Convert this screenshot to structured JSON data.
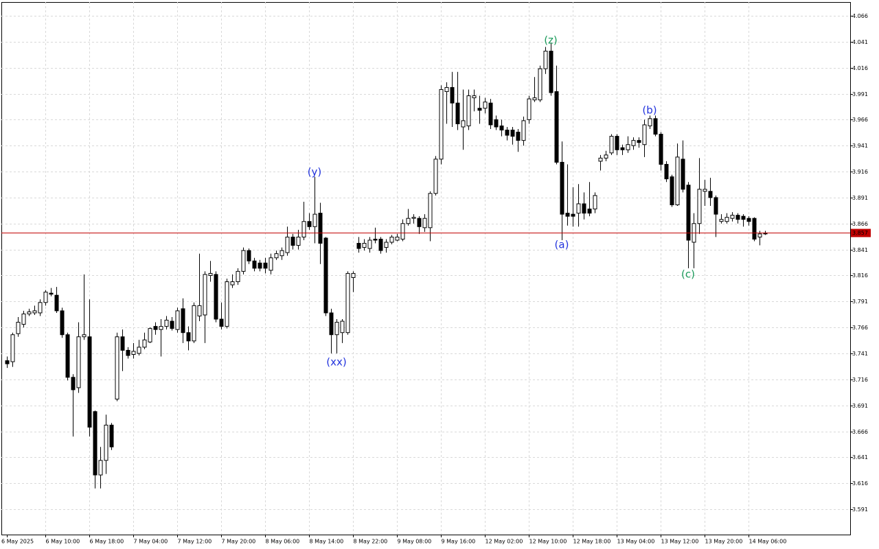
{
  "chart_data": {
    "type": "candlestick",
    "categories": [
      "6 May 2025",
      null,
      null,
      null,
      null,
      null,
      null,
      "6 May 10:00",
      null,
      null,
      null,
      null,
      null,
      null,
      null,
      "6 May 18:00",
      null,
      null,
      null,
      null,
      null,
      null,
      null,
      "7 May 04:00",
      null,
      null,
      null,
      null,
      null,
      null,
      null,
      "7 May 12:00",
      null,
      null,
      null,
      null,
      null,
      null,
      null,
      "7 May 20:00",
      null,
      null,
      null,
      null,
      null,
      null,
      null,
      "8 May 06:00",
      null,
      null,
      null,
      null,
      null,
      null,
      null,
      "8 May 14:00",
      null,
      null,
      null,
      null,
      null,
      null,
      null,
      "8 May 22:00",
      null,
      null,
      null,
      null,
      null,
      null,
      null,
      "9 May 08:00",
      null,
      null,
      null,
      null,
      null,
      null,
      null,
      "9 May 16:00",
      null,
      null,
      null,
      null,
      null,
      null,
      null,
      "12 May 02:00",
      null,
      null,
      null,
      null,
      null,
      null,
      null,
      "12 May 10:00",
      null,
      null,
      null,
      null,
      null,
      null,
      null,
      "12 May 18:00",
      null,
      null,
      null,
      null,
      null,
      null,
      null,
      "13 May 04:00",
      null,
      null,
      null,
      null,
      null,
      null,
      null,
      "13 May 12:00",
      null,
      null,
      null,
      null,
      null,
      null,
      null,
      "13 May 20:00",
      null,
      null,
      null,
      null,
      null,
      null,
      null,
      "14 May 06:00",
      null,
      null,
      null
    ],
    "open": [
      3.734,
      3.733,
      3.76,
      3.769,
      3.779,
      3.78,
      3.78,
      3.79,
      3.799,
      3.797,
      3.782,
      3.759,
      3.718,
      3.708,
      3.757,
      3.757,
      3.685,
      3.624,
      3.638,
      3.672,
      3.697,
      3.757,
      3.744,
      3.74,
      3.741,
      3.747,
      3.752,
      3.767,
      3.764,
      3.767,
      3.772,
      3.764,
      3.784,
      3.761,
      3.753,
      3.777,
      3.778,
      3.816,
      3.817,
      3.774,
      3.767,
      3.807,
      3.81,
      3.82,
      3.84,
      3.83,
      3.828,
      3.828,
      3.821,
      3.833,
      3.835,
      3.838,
      3.853,
      3.845,
      3.853,
      3.868,
      3.863,
      3.876,
      3.852,
      3.78,
      3.759,
      3.761,
      3.761,
      3.814,
      3.847,
      3.843,
      3.842,
      3.851,
      3.851,
      3.843,
      3.848,
      3.85,
      3.851,
      3.866,
      3.871,
      3.871,
      3.862,
      3.862,
      3.895,
      3.928,
      3.993,
      3.997,
      3.982,
      3.959,
      3.96,
      3.987,
      3.977,
      3.977,
      3.982,
      3.966,
      3.96,
      3.956,
      3.956,
      3.954,
      3.946,
      3.966,
      3.985,
      3.985,
      4.015,
      4.032,
      3.993,
      3.925,
      3.876,
      3.875,
      3.876,
      3.885,
      3.88,
      3.88,
      3.926,
      3.929,
      3.934,
      3.95,
      3.939,
      3.937,
      3.941,
      3.946,
      3.942,
      3.96,
      3.967,
      3.952,
      3.923,
      3.911,
      3.884,
      3.928,
      3.903,
      3.848,
      3.866,
      3.897,
      3.897,
      3.891,
      3.868,
      3.868,
      3.871,
      3.874,
      3.873,
      3.871,
      3.871,
      3.853,
      3.857
    ],
    "high": [
      3.738,
      3.761,
      3.776,
      3.782,
      3.784,
      3.787,
      3.793,
      3.802,
      3.804,
      3.805,
      3.785,
      3.761,
      3.721,
      3.771,
      3.817,
      3.793,
      3.686,
      3.651,
      3.682,
      3.674,
      3.761,
      3.764,
      3.747,
      3.751,
      3.754,
      3.761,
      3.766,
      3.771,
      3.774,
      3.777,
      3.776,
      3.785,
      3.794,
      3.767,
      3.79,
      3.837,
      3.82,
      3.83,
      3.82,
      3.79,
      3.813,
      3.817,
      3.823,
      3.843,
      3.842,
      3.833,
      3.831,
      3.833,
      3.837,
      3.84,
      3.843,
      3.863,
      3.856,
      3.86,
      3.887,
      3.876,
      3.911,
      3.886,
      3.853,
      3.784,
      3.774,
      3.774,
      3.82,
      3.82,
      3.853,
      3.851,
      3.853,
      3.862,
      3.853,
      3.851,
      3.855,
      3.856,
      3.87,
      3.88,
      3.875,
      3.873,
      3.875,
      3.897,
      3.931,
      3.999,
      4.002,
      4.012,
      4.012,
      3.995,
      3.995,
      3.995,
      3.989,
      3.987,
      3.986,
      3.97,
      3.966,
      3.959,
      3.959,
      3.957,
      3.969,
      3.989,
      4.007,
      4.018,
      4.036,
      4.04,
      4.018,
      3.945,
      3.923,
      3.901,
      3.904,
      3.896,
      3.906,
      3.896,
      3.932,
      3.936,
      3.952,
      3.952,
      3.942,
      3.95,
      3.949,
      3.949,
      3.966,
      3.97,
      3.97,
      3.954,
      3.926,
      3.913,
      3.943,
      3.946,
      3.906,
      3.876,
      3.929,
      3.908,
      3.91,
      3.893,
      3.875,
      3.876,
      3.877,
      3.876,
      3.875,
      3.873,
      3.872,
      3.859,
      3.859
    ],
    "low": [
      3.727,
      3.728,
      3.757,
      3.766,
      3.777,
      3.778,
      3.777,
      3.787,
      3.796,
      3.78,
      3.756,
      3.715,
      3.661,
      3.703,
      3.754,
      3.661,
      3.611,
      3.611,
      3.625,
      3.648,
      3.695,
      3.724,
      3.736,
      3.736,
      3.739,
      3.745,
      3.751,
      3.759,
      3.738,
      3.764,
      3.763,
      3.761,
      3.751,
      3.744,
      3.751,
      3.772,
      3.751,
      3.81,
      3.771,
      3.764,
      3.765,
      3.804,
      3.807,
      3.817,
      3.827,
      3.82,
      3.82,
      3.818,
      3.817,
      3.831,
      3.831,
      3.835,
      3.841,
      3.841,
      3.85,
      3.86,
      3.847,
      3.827,
      3.777,
      3.741,
      3.741,
      3.751,
      3.759,
      3.8,
      3.838,
      3.84,
      3.838,
      3.847,
      3.837,
      3.838,
      3.846,
      3.849,
      3.849,
      3.864,
      3.866,
      3.856,
      3.858,
      3.849,
      3.893,
      3.923,
      3.962,
      3.959,
      3.956,
      3.937,
      3.956,
      3.974,
      3.962,
      3.972,
      3.957,
      3.956,
      3.95,
      3.946,
      3.942,
      3.935,
      3.941,
      3.962,
      3.983,
      3.983,
      4.01,
      3.989,
      3.923,
      3.85,
      3.864,
      3.863,
      3.863,
      3.87,
      3.873,
      3.876,
      3.917,
      3.926,
      3.932,
      3.932,
      3.932,
      3.934,
      3.937,
      3.939,
      3.93,
      3.957,
      3.95,
      3.917,
      3.906,
      3.882,
      3.883,
      3.896,
      3.823,
      3.823,
      3.856,
      3.883,
      3.883,
      3.853,
      3.866,
      3.866,
      3.868,
      3.866,
      3.863,
      3.864,
      3.849,
      3.845,
      3.855
    ],
    "close": [
      3.731,
      3.759,
      3.771,
      3.779,
      3.781,
      3.782,
      3.79,
      3.8,
      3.798,
      3.782,
      3.759,
      3.718,
      3.706,
      3.757,
      3.759,
      3.67,
      3.624,
      3.638,
      3.672,
      3.651,
      3.757,
      3.744,
      3.739,
      3.743,
      3.747,
      3.754,
      3.765,
      3.764,
      3.767,
      3.773,
      3.765,
      3.782,
      3.761,
      3.753,
      3.787,
      3.787,
      3.817,
      3.818,
      3.774,
      3.767,
      3.81,
      3.81,
      3.82,
      3.84,
      3.83,
      3.823,
      3.823,
      3.823,
      3.833,
      3.837,
      3.84,
      3.853,
      3.845,
      3.853,
      3.868,
      3.863,
      3.875,
      3.847,
      3.78,
      3.759,
      3.771,
      3.772,
      3.818,
      3.818,
      3.842,
      3.847,
      3.85,
      3.85,
      3.84,
      3.848,
      3.853,
      3.853,
      3.866,
      3.871,
      3.872,
      3.863,
      3.871,
      3.895,
      3.928,
      3.995,
      3.997,
      3.982,
      3.962,
      3.965,
      3.989,
      3.989,
      3.975,
      3.983,
      3.961,
      3.959,
      3.956,
      3.951,
      3.95,
      3.946,
      3.965,
      3.986,
      3.987,
      4.015,
      4.032,
      3.992,
      3.925,
      3.875,
      3.873,
      3.873,
      3.885,
      3.876,
      3.876,
      3.893,
      3.929,
      3.932,
      3.95,
      3.937,
      3.937,
      3.942,
      3.946,
      3.944,
      3.961,
      3.967,
      3.952,
      3.923,
      3.909,
      3.884,
      3.93,
      3.899,
      3.85,
      3.866,
      3.899,
      3.899,
      3.891,
      3.875,
      3.87,
      3.872,
      3.874,
      3.87,
      3.87,
      3.868,
      3.851,
      3.856,
      3.856
    ],
    "ylim": [
      3.5666,
      4.0792
    ],
    "yticks": [
      3.591,
      3.616,
      3.641,
      3.666,
      3.691,
      3.716,
      3.741,
      3.766,
      3.791,
      3.816,
      3.841,
      3.866,
      3.891,
      3.916,
      3.941,
      3.966,
      3.991,
      4.016,
      4.041,
      4.066
    ],
    "grid": true,
    "up_color": "#ffffff",
    "down_color": "#000000",
    "current_price": 3.857,
    "current_price_color": "#c00000",
    "annotations": [
      {
        "text": "(y)",
        "color": "#2233dd"
      },
      {
        "text": "(xx)",
        "color": "#2233dd"
      },
      {
        "text": "(z)",
        "color": "#1a9a5a"
      },
      {
        "text": "(a)",
        "color": "#2233dd"
      },
      {
        "text": "(b)",
        "color": "#2233dd"
      },
      {
        "text": "(c)",
        "color": "#1a9a5a"
      }
    ]
  }
}
